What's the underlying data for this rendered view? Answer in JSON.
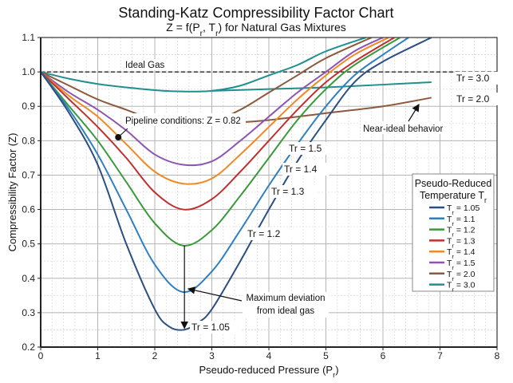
{
  "chart_data": {
    "type": "line",
    "title": "Standing-Katz Compressibility Factor Chart",
    "subtitle": "Z = f(Pr, Tr) for Natural Gas Mixtures",
    "xlabel": "Pseudo-reduced Pressure (Pr)",
    "ylabel": "Compressibility Factor (Z)",
    "xlim": [
      0,
      8
    ],
    "ylim": [
      0.2,
      1.1
    ],
    "xticks": [
      "0",
      "1",
      "2",
      "3",
      "4",
      "5",
      "6",
      "7",
      "8"
    ],
    "yticks": [
      "0.2",
      "0.3",
      "0.4",
      "0.5",
      "0.6",
      "0.7",
      "0.8",
      "0.9",
      "1.0",
      "1.1"
    ],
    "grid": true,
    "legend": {
      "title": "Pseudo-Reduced Temperature Tr",
      "placement": "right"
    },
    "ideal_gas": {
      "label": "Ideal Gas",
      "z": 1.0
    },
    "series": [
      {
        "name": "Tr = 1.05",
        "color": "#2b4f81",
        "points": [
          [
            0,
            1
          ],
          [
            0.5,
            0.88
          ],
          [
            1,
            0.73
          ],
          [
            1.5,
            0.5
          ],
          [
            2,
            0.31
          ],
          [
            2.25,
            0.26
          ],
          [
            2.5,
            0.25
          ],
          [
            2.75,
            0.27
          ],
          [
            3,
            0.31
          ],
          [
            3.5,
            0.45
          ],
          [
            4,
            0.6
          ],
          [
            4.5,
            0.74
          ],
          [
            5,
            0.86
          ],
          [
            5.5,
            0.97
          ],
          [
            6,
            1.03
          ],
          [
            6.85,
            1.1
          ]
        ]
      },
      {
        "name": "Tr = 1.1",
        "color": "#2f7fc1",
        "points": [
          [
            0,
            1
          ],
          [
            0.5,
            0.89
          ],
          [
            1,
            0.76
          ],
          [
            1.5,
            0.6
          ],
          [
            2,
            0.44
          ],
          [
            2.5,
            0.36
          ],
          [
            3,
            0.42
          ],
          [
            3.5,
            0.54
          ],
          [
            4,
            0.67
          ],
          [
            4.5,
            0.79
          ],
          [
            5,
            0.9
          ],
          [
            5.5,
            0.99
          ],
          [
            6,
            1.05
          ],
          [
            6.45,
            1.1
          ]
        ]
      },
      {
        "name": "Tr = 1.2",
        "color": "#3a9a3a",
        "points": [
          [
            0,
            1
          ],
          [
            0.5,
            0.9
          ],
          [
            1,
            0.8
          ],
          [
            1.5,
            0.68
          ],
          [
            2,
            0.56
          ],
          [
            2.5,
            0.495
          ],
          [
            3,
            0.54
          ],
          [
            3.5,
            0.64
          ],
          [
            4,
            0.75
          ],
          [
            4.5,
            0.86
          ],
          [
            5,
            0.95
          ],
          [
            5.5,
            1.02
          ],
          [
            6.3,
            1.1
          ]
        ]
      },
      {
        "name": "Tr = 1.3",
        "color": "#c0302f",
        "points": [
          [
            0,
            1
          ],
          [
            0.5,
            0.92
          ],
          [
            1,
            0.84
          ],
          [
            1.5,
            0.75
          ],
          [
            2,
            0.65
          ],
          [
            2.5,
            0.6
          ],
          [
            3,
            0.63
          ],
          [
            3.5,
            0.71
          ],
          [
            4,
            0.8
          ],
          [
            4.5,
            0.89
          ],
          [
            5,
            0.97
          ],
          [
            5.5,
            1.03
          ],
          [
            6.2,
            1.1
          ]
        ]
      },
      {
        "name": "Tr = 1.4",
        "color": "#f08a24",
        "points": [
          [
            0,
            1
          ],
          [
            0.5,
            0.93
          ],
          [
            1,
            0.87
          ],
          [
            1.5,
            0.79
          ],
          [
            2,
            0.71
          ],
          [
            2.5,
            0.675
          ],
          [
            3,
            0.69
          ],
          [
            3.5,
            0.76
          ],
          [
            4,
            0.84
          ],
          [
            4.5,
            0.92
          ],
          [
            5,
            0.99
          ],
          [
            5.5,
            1.05
          ],
          [
            6.1,
            1.1
          ]
        ]
      },
      {
        "name": "Tr = 1.5",
        "color": "#8e55b0",
        "points": [
          [
            0,
            1
          ],
          [
            0.5,
            0.94
          ],
          [
            1,
            0.89
          ],
          [
            1.5,
            0.83
          ],
          [
            2,
            0.76
          ],
          [
            2.5,
            0.73
          ],
          [
            3,
            0.74
          ],
          [
            3.5,
            0.8
          ],
          [
            4,
            0.87
          ],
          [
            4.5,
            0.94
          ],
          [
            5,
            1.0
          ],
          [
            5.5,
            1.06
          ],
          [
            6.0,
            1.1
          ]
        ]
      },
      {
        "name": "Tr = 2.0",
        "color": "#8b5a3c",
        "points": [
          [
            0,
            1
          ],
          [
            0.5,
            0.96
          ],
          [
            1,
            0.92
          ],
          [
            1.5,
            0.89
          ],
          [
            2,
            0.86
          ],
          [
            2.5,
            0.85
          ],
          [
            3,
            0.855
          ],
          [
            3.5,
            0.89
          ],
          [
            4,
            0.94
          ],
          [
            4.5,
            0.99
          ],
          [
            5,
            1.04
          ],
          [
            5.8,
            1.1
          ]
        ],
        "branch": [
          [
            3.2,
            0.85
          ],
          [
            4,
            0.86
          ],
          [
            5,
            0.88
          ],
          [
            6,
            0.9
          ],
          [
            6.85,
            0.925
          ]
        ]
      },
      {
        "name": "Tr = 3.0",
        "color": "#1f8f8f",
        "points": [
          [
            0,
            1
          ],
          [
            0.5,
            0.98
          ],
          [
            1,
            0.965
          ],
          [
            1.5,
            0.955
          ],
          [
            2,
            0.947
          ],
          [
            2.5,
            0.943
          ],
          [
            3,
            0.945
          ],
          [
            3.5,
            0.96
          ],
          [
            4,
            0.99
          ],
          [
            4.5,
            1.02
          ],
          [
            5,
            1.06
          ],
          [
            5.7,
            1.1
          ]
        ],
        "branch": [
          [
            3,
            0.945
          ],
          [
            4,
            0.95
          ],
          [
            5,
            0.955
          ],
          [
            6,
            0.963
          ],
          [
            6.85,
            0.97
          ]
        ]
      }
    ],
    "curve_labels": [
      "Tr = 3.0",
      "Tr = 2.0",
      "Tr = 1.5",
      "Tr = 1.4",
      "Tr = 1.3",
      "Tr = 1.2",
      "Tr = 1.05"
    ],
    "annotations": {
      "pipeline": {
        "text": "Pipeline conditions: Z = 0.82",
        "point": [
          1.36,
          0.81
        ]
      },
      "near_ideal": "Near-ideal behavior",
      "max_deviation": [
        "Maximum deviation",
        "from ideal gas"
      ]
    }
  }
}
